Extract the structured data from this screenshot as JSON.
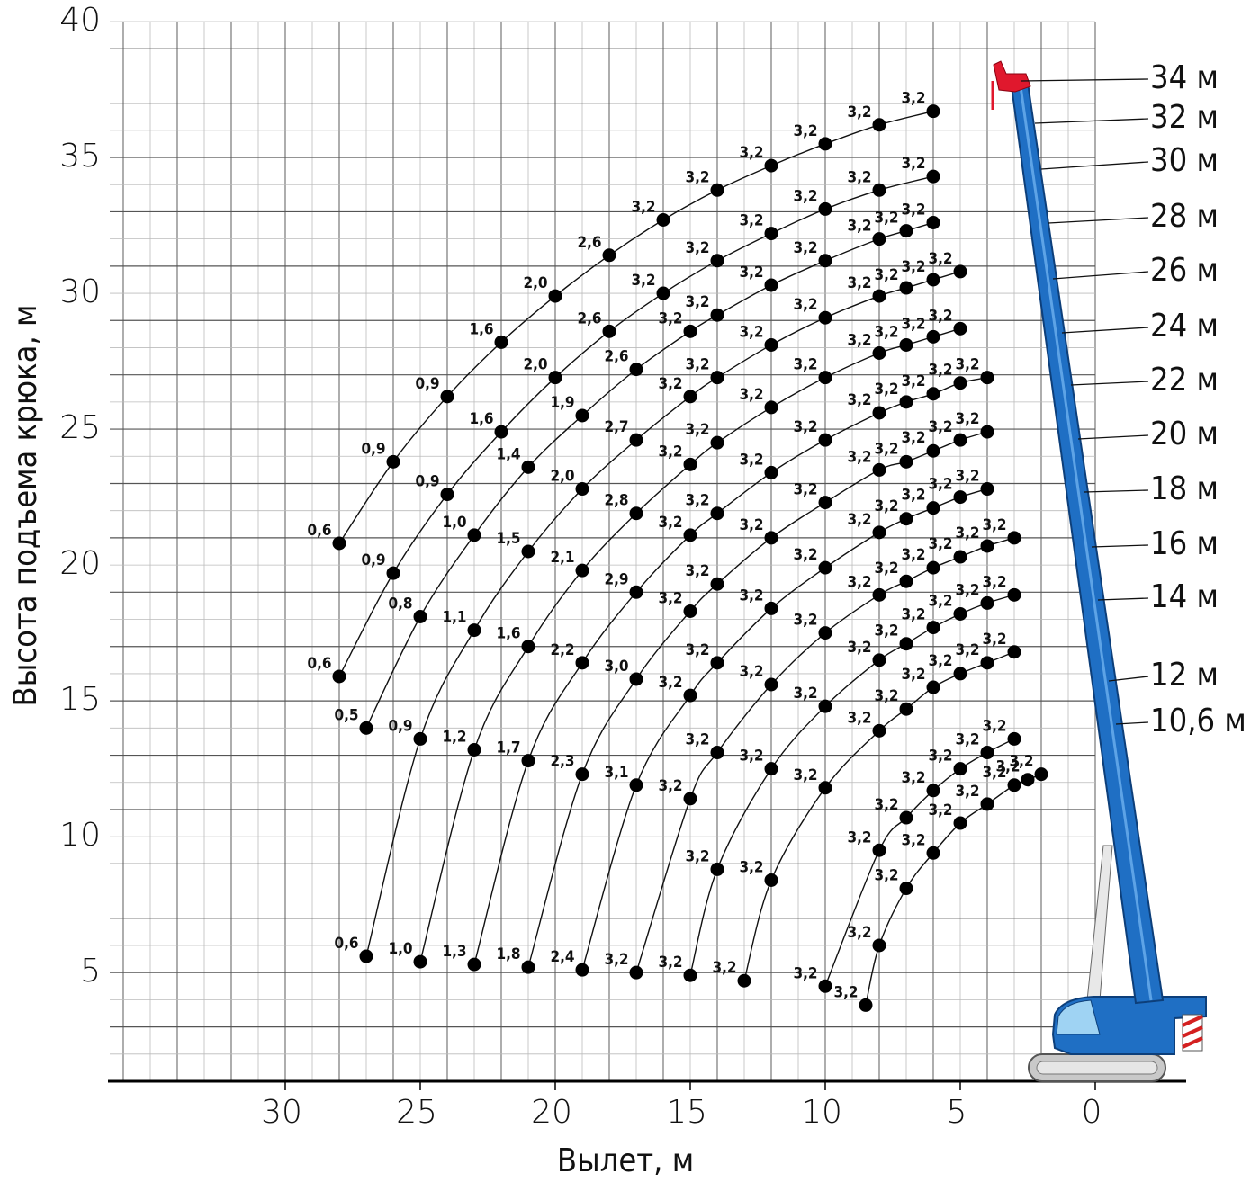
{
  "chart_data": {
    "type": "load-chart",
    "x_label": "Вылет, м",
    "y_label": "Высота подъема крюка, м",
    "xlim": [
      36.5,
      -3.5
    ],
    "ylim": [
      1,
      40
    ],
    "xticks": [
      30,
      25,
      20,
      15,
      10,
      5,
      0
    ],
    "yticks": [
      5,
      10,
      15,
      20,
      25,
      30,
      35,
      40
    ],
    "xgrid": [
      36,
      35,
      34,
      33,
      32,
      31,
      30,
      29,
      28,
      27,
      26,
      25,
      24,
      23,
      22,
      21,
      20,
      19,
      18,
      17,
      16,
      15,
      14,
      13,
      12,
      11,
      10,
      9,
      8,
      7,
      6,
      5,
      4,
      3,
      2,
      1,
      0
    ],
    "ygrid": [
      2,
      3,
      4,
      5,
      6,
      7,
      8,
      9,
      10,
      11,
      12,
      13,
      14,
      15,
      16,
      17,
      18,
      19,
      20,
      21,
      22,
      23,
      24,
      25,
      26,
      27,
      28,
      29,
      30,
      31,
      32,
      33,
      34,
      35,
      36,
      37,
      38,
      39,
      40
    ],
    "grid": true,
    "point_color": "#000000",
    "series": [
      {
        "name": "34 м",
        "x": [
          28,
          26,
          24,
          22,
          20,
          18,
          16,
          14,
          12,
          10,
          8,
          6
        ],
        "y": [
          20.8,
          23.8,
          26.2,
          28.2,
          29.9,
          31.4,
          32.7,
          33.8,
          34.7,
          35.5,
          36.2,
          36.7
        ],
        "values": [
          0.6,
          0.9,
          0.9,
          1.6,
          2.0,
          2.6,
          3.2,
          3.2,
          3.2,
          3.2,
          3.2,
          3.2
        ],
        "value_labels": [
          "0,6",
          "0,9",
          "0,9",
          "1,6",
          "2,0",
          "2,6",
          "3,2",
          "3,2",
          "3,2",
          "3,2",
          "3,2",
          "3,2"
        ]
      },
      {
        "name": "32 м",
        "x": [
          28,
          26,
          24,
          22,
          20,
          18,
          16,
          14,
          12,
          10,
          8,
          6
        ],
        "y": [
          15.9,
          19.7,
          22.6,
          24.9,
          26.9,
          28.6,
          30.0,
          31.2,
          32.2,
          33.1,
          33.8,
          34.3
        ],
        "values": [
          0.6,
          0.9,
          0.9,
          1.6,
          2.0,
          2.6,
          3.2,
          3.2,
          3.2,
          3.2,
          3.2,
          3.2
        ],
        "value_labels": [
          "0,6",
          "0,9",
          "0,9",
          "1,6",
          "2,0",
          "2,6",
          "3,2",
          "3,2",
          "3,2",
          "3,2",
          "3,2",
          "3,2"
        ]
      },
      {
        "name": "30 м",
        "x": [
          27,
          25,
          23,
          21,
          19,
          17,
          15,
          14,
          12,
          10,
          8,
          7,
          6
        ],
        "y": [
          14.0,
          18.1,
          21.1,
          23.6,
          25.5,
          27.2,
          28.6,
          29.2,
          30.3,
          31.2,
          32.0,
          32.3,
          32.6
        ],
        "values": [
          0.5,
          0.8,
          1.0,
          1.4,
          1.9,
          2.6,
          3.2,
          3.2,
          3.2,
          3.2,
          3.2,
          3.2,
          3.2
        ],
        "value_labels": [
          "0,5",
          "0,8",
          "1,0",
          "1,4",
          "1,9",
          "2,6",
          "3,2",
          "3,2",
          "3,2",
          "3,2",
          "3,2",
          "3,2",
          "3,2"
        ]
      },
      {
        "name": "28 м",
        "x": [
          27,
          25,
          23,
          21,
          19,
          17,
          15,
          14,
          12,
          10,
          8,
          7,
          6,
          5
        ],
        "y": [
          5.6,
          13.6,
          17.6,
          20.5,
          22.8,
          24.6,
          26.2,
          26.9,
          28.1,
          29.1,
          29.9,
          30.2,
          30.5,
          30.8
        ],
        "values": [
          0.6,
          0.9,
          1.1,
          1.5,
          2.0,
          2.7,
          3.2,
          3.2,
          3.2,
          3.2,
          3.2,
          3.2,
          3.2,
          3.2
        ],
        "value_labels": [
          "0,6",
          "0,9",
          "1,1",
          "1,5",
          "2,0",
          "2,7",
          "3,2",
          "3,2",
          "3,2",
          "3,2",
          "3,2",
          "3,2",
          "3,2",
          "3,2"
        ]
      },
      {
        "name": "26 м",
        "x": [
          25,
          23,
          21,
          19,
          17,
          15,
          14,
          12,
          10,
          8,
          7,
          6,
          5
        ],
        "y": [
          5.4,
          13.2,
          17.0,
          19.8,
          21.9,
          23.7,
          24.5,
          25.8,
          26.9,
          27.8,
          28.1,
          28.4,
          28.7
        ],
        "values": [
          1.0,
          1.2,
          1.6,
          2.1,
          2.8,
          3.2,
          3.2,
          3.2,
          3.2,
          3.2,
          3.2,
          3.2,
          3.2
        ],
        "value_labels": [
          "1,0",
          "1,2",
          "1,6",
          "2,1",
          "2,8",
          "3,2",
          "3,2",
          "3,2",
          "3,2",
          "3,2",
          "3,2",
          "3,2",
          "3,2"
        ]
      },
      {
        "name": "24 м",
        "x": [
          23,
          21,
          19,
          17,
          15,
          14,
          12,
          10,
          8,
          7,
          6,
          5,
          4
        ],
        "y": [
          5.3,
          12.8,
          16.4,
          19.0,
          21.1,
          21.9,
          23.4,
          24.6,
          25.6,
          26.0,
          26.3,
          26.7,
          26.9
        ],
        "values": [
          1.3,
          1.7,
          2.2,
          2.9,
          3.2,
          3.2,
          3.2,
          3.2,
          3.2,
          3.2,
          3.2,
          3.2,
          3.2
        ],
        "value_labels": [
          "1,3",
          "1,7",
          "2,2",
          "2,9",
          "3,2",
          "3,2",
          "3,2",
          "3,2",
          "3,2",
          "3,2",
          "3,2",
          "3,2",
          "3,2"
        ]
      },
      {
        "name": "22 м",
        "x": [
          21,
          19,
          17,
          15,
          14,
          12,
          10,
          8,
          7,
          6,
          5,
          4
        ],
        "y": [
          5.2,
          12.3,
          15.8,
          18.3,
          19.3,
          21.0,
          22.3,
          23.5,
          23.8,
          24.2,
          24.6,
          24.9
        ],
        "values": [
          1.8,
          2.3,
          3.0,
          3.2,
          3.2,
          3.2,
          3.2,
          3.2,
          3.2,
          3.2,
          3.2,
          3.2
        ],
        "value_labels": [
          "1,8",
          "2,3",
          "3,0",
          "3,2",
          "3,2",
          "3,2",
          "3,2",
          "3,2",
          "3,2",
          "3,2",
          "3,2",
          "3,2"
        ]
      },
      {
        "name": "20 м",
        "x": [
          19,
          17,
          15,
          14,
          12,
          10,
          8,
          7,
          6,
          5,
          4
        ],
        "y": [
          5.1,
          11.9,
          15.2,
          16.4,
          18.4,
          19.9,
          21.2,
          21.7,
          22.1,
          22.5,
          22.8
        ],
        "values": [
          2.4,
          3.1,
          3.2,
          3.2,
          3.2,
          3.2,
          3.2,
          3.2,
          3.2,
          3.2,
          3.2
        ],
        "value_labels": [
          "2,4",
          "3,1",
          "3,2",
          "3,2",
          "3,2",
          "3,2",
          "3,2",
          "3,2",
          "3,2",
          "3,2",
          "3,2"
        ]
      },
      {
        "name": "18 м",
        "x": [
          17,
          15,
          14,
          12,
          10,
          8,
          7,
          6,
          5,
          4,
          3
        ],
        "y": [
          5.0,
          11.4,
          13.1,
          15.6,
          17.5,
          18.9,
          19.4,
          19.9,
          20.3,
          20.7,
          21.0
        ],
        "values": [
          3.2,
          3.2,
          3.2,
          3.2,
          3.2,
          3.2,
          3.2,
          3.2,
          3.2,
          3.2,
          3.2
        ],
        "value_labels": [
          "3,2",
          "3,2",
          "3,2",
          "3,2",
          "3,2",
          "3,2",
          "3,2",
          "3,2",
          "3,2",
          "3,2",
          "3,2"
        ]
      },
      {
        "name": "16 м",
        "x": [
          15,
          14,
          12,
          10,
          8,
          7,
          6,
          5,
          4,
          3
        ],
        "y": [
          4.9,
          8.8,
          12.5,
          14.8,
          16.5,
          17.1,
          17.7,
          18.2,
          18.6,
          18.9
        ],
        "values": [
          3.2,
          3.2,
          3.2,
          3.2,
          3.2,
          3.2,
          3.2,
          3.2,
          3.2,
          3.2
        ],
        "value_labels": [
          "3,2",
          "3,2",
          "3,2",
          "3,2",
          "3,2",
          "3,2",
          "3,2",
          "3,2",
          "3,2",
          "3,2"
        ]
      },
      {
        "name": "14 м",
        "x": [
          13,
          12,
          10,
          8,
          7,
          6,
          5,
          4,
          3
        ],
        "y": [
          4.7,
          8.4,
          11.8,
          13.9,
          14.7,
          15.5,
          16.0,
          16.4,
          16.8
        ],
        "values": [
          3.2,
          3.2,
          3.2,
          3.2,
          3.2,
          3.2,
          3.2,
          3.2,
          3.2
        ],
        "value_labels": [
          "3,2",
          "3,2",
          "3,2",
          "3,2",
          "3,2",
          "3,2",
          "3,2",
          "3,2",
          "3,2"
        ]
      },
      {
        "name": "12 м",
        "x": [
          10,
          8,
          7,
          6,
          5,
          4,
          3
        ],
        "y": [
          4.5,
          9.5,
          10.7,
          11.7,
          12.5,
          13.1,
          13.6
        ],
        "values": [
          3.2,
          3.2,
          3.2,
          3.2,
          3.2,
          3.2,
          3.2
        ],
        "value_labels": [
          "3,2",
          "3,2",
          "3,2",
          "3,2",
          "3,2",
          "3,2",
          "3,2"
        ]
      },
      {
        "name": "10,6 м",
        "x": [
          8.5,
          8,
          7,
          6,
          5,
          4,
          3,
          2.5,
          2
        ],
        "y": [
          3.8,
          6.0,
          8.1,
          9.4,
          10.5,
          11.2,
          11.9,
          12.1,
          12.3
        ],
        "values": [
          3.2,
          3.2,
          3.2,
          3.2,
          3.2,
          3.2,
          3.2,
          3.2,
          3.2
        ],
        "value_labels": [
          "3,2",
          "3,2",
          "3,2",
          "3,2",
          "3,2",
          "3,2",
          "3,2",
          "3,2",
          "3,2"
        ]
      }
    ]
  }
}
